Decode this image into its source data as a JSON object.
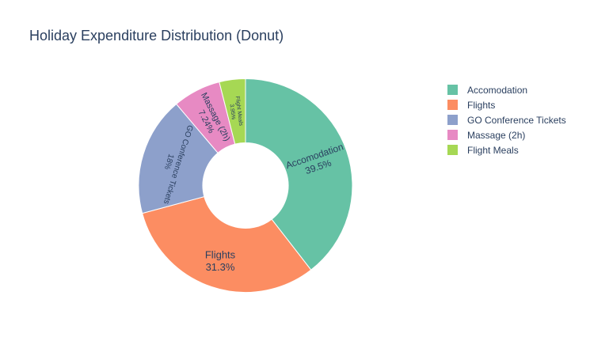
{
  "chart_data": {
    "type": "pie",
    "title": "Holiday Expenditure Distribution (Donut)",
    "hole": 0.4,
    "categories": [
      "Accomodation",
      "Flights",
      "GO Conference Tickets",
      "Massage (2h)",
      "Flight Meals"
    ],
    "values": [
      39.5,
      31.3,
      18,
      7.24,
      3.95
    ],
    "percent_labels": [
      "39.5%",
      "31.3%",
      "18%",
      "7.24%",
      "3.95%"
    ],
    "colors": [
      "#66c2a5",
      "#fc8d62",
      "#8da0cb",
      "#e78ac3",
      "#a6d854"
    ],
    "legend_position": "top-right",
    "direction": "clockwise",
    "start_angle": "top"
  }
}
